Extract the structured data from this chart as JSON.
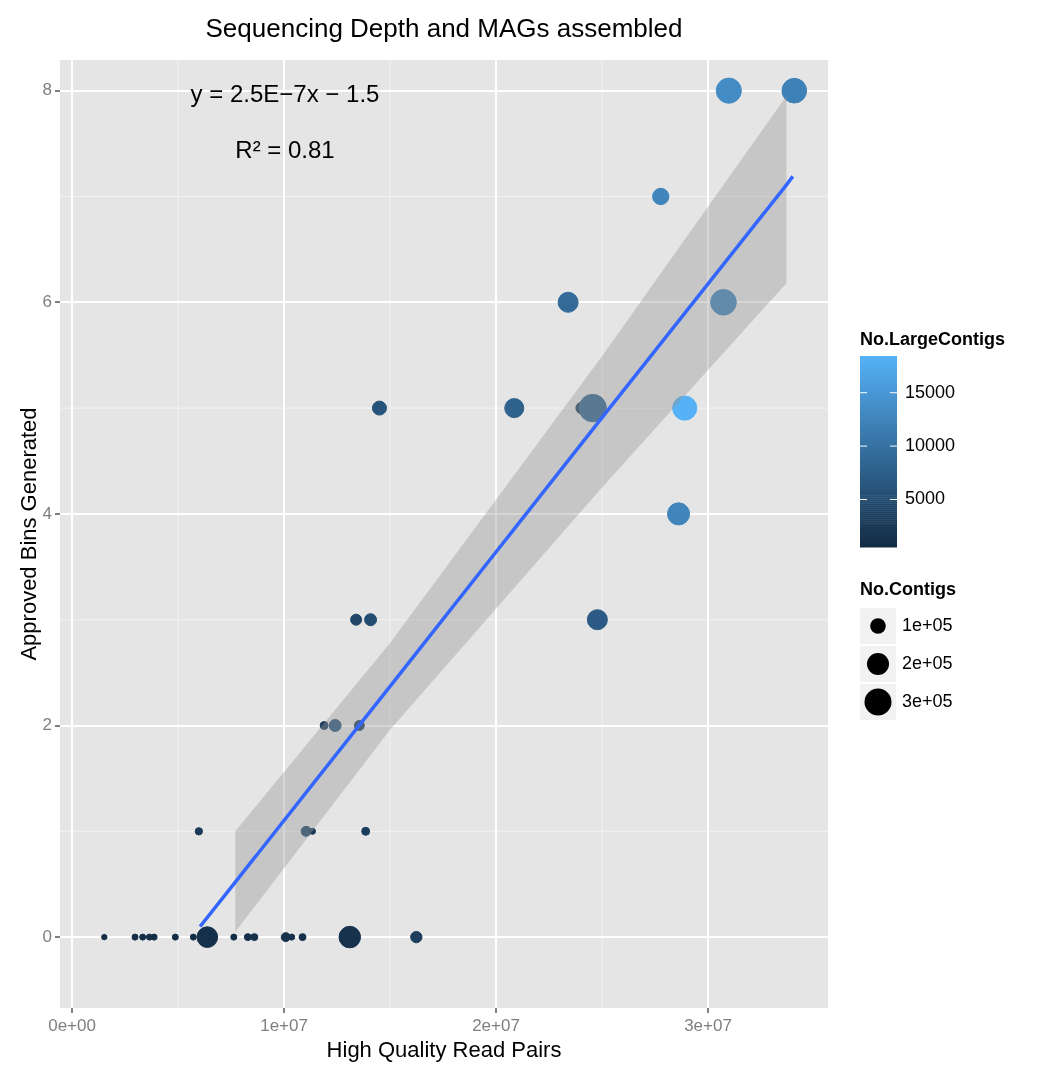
{
  "chart_data": {
    "type": "bubble",
    "title": "Sequencing Depth and MAGs assembled",
    "xlabel": "High Quality Read Pairs",
    "ylabel": "Approved Bins Generated",
    "clabel": "No.LargeContigs",
    "legend_title": "No.Contigs",
    "annotations": [
      "y = 2.5E−7x − 1.5",
      "R² = 0.81"
    ],
    "series": [
      {
        "x": [
          1520000,
          2970000,
          3330000,
          3650000,
          3870000,
          4870000,
          5720000,
          6380000,
          7630000,
          8290000,
          8600000,
          10080000,
          10360000,
          10870000,
          13100000,
          16240000,
          5980000,
          11040000,
          11340000,
          13850000,
          11890000,
          12410000,
          13550000,
          13400000,
          14080000,
          24780000,
          28610000,
          14500000,
          20860000,
          24050000,
          24560000,
          28900000,
          23400000,
          30730000,
          27770000,
          30980000,
          34070000
        ],
        "values": [
          0,
          0,
          0,
          0,
          0,
          0,
          0,
          0,
          0,
          0,
          0,
          0,
          0,
          0,
          0,
          0,
          1,
          1,
          1,
          1,
          2,
          2,
          2,
          3,
          3,
          3,
          4,
          5,
          5,
          5,
          5,
          5,
          6,
          6,
          7,
          8,
          8
        ],
        "sizes": [
          12000,
          15000,
          15000,
          15000,
          15000,
          15000,
          15000,
          175000,
          15000,
          20000,
          20000,
          33000,
          15000,
          20000,
          190000,
          53000,
          22000,
          41000,
          15000,
          26000,
          26000,
          59000,
          41000,
          50000,
          59000,
          165000,
          200000,
          81000,
          150000,
          59000,
          310000,
          240000,
          165000,
          270000,
          110000,
          260000,
          250000
        ],
        "cvalues": [
          800,
          900,
          900,
          900,
          900,
          1000,
          900,
          1200,
          1000,
          1200,
          1200,
          1500,
          1300,
          1200,
          1500,
          3000,
          2500,
          4000,
          2500,
          3000,
          3000,
          6000,
          3000,
          4000,
          5000,
          7000,
          12500,
          6000,
          8000,
          3000,
          8000,
          18400,
          9000,
          12000,
          12500,
          13500,
          12000
        ],
        "colors": [
          "#142d46",
          "#142e47",
          "#142e47",
          "#142e47",
          "#142e47",
          "#152e48",
          "#142e47",
          "#15304a",
          "#152e48",
          "#15304a",
          "#15304a",
          "#17324d",
          "#16314b",
          "#15304a",
          "#17324d",
          "#1c3d5c",
          "#1a3a57",
          "#204566",
          "#1a3a57",
          "#1c3d5c",
          "#1c3d5c",
          "#27547a",
          "#1c3d5c",
          "#204566",
          "#244c70",
          "#2b5b84",
          "#4085bb",
          "#27547a",
          "#2f638e",
          "#1c3d5c",
          "#2f638e",
          "#56b1f7",
          "#336a98",
          "#3e81b6",
          "#4085bb",
          "#438cc5",
          "#3e81b6"
        ]
      },
      {
        "type": "line",
        "color": "#3366ff",
        "x": [
          6040000,
          7700000,
          15000000,
          25000000,
          33700000,
          34000000
        ],
        "values": [
          0.1,
          0.52,
          2.37,
          4.91,
          7.11,
          7.19
        ],
        "lower": [
          null,
          0.05,
          1.96,
          4.25,
          6.18,
          null
        ],
        "upper": [
          null,
          1.0,
          2.78,
          5.49,
          7.95,
          null
        ]
      }
    ],
    "xlim": [
      -570000,
      35660000
    ],
    "xticks": [
      {
        "value": 0,
        "label": "0e+00"
      },
      {
        "value": 10000000,
        "label": "1e+07"
      },
      {
        "value": 20000000,
        "label": "2e+07"
      },
      {
        "value": 30000000,
        "label": "3e+07"
      }
    ],
    "ylim": [
      -0.67,
      8.29
    ],
    "yticks": [
      0,
      2,
      4,
      6,
      8
    ],
    "clim": [
      550,
      18440
    ],
    "cticks": [
      5000,
      10000,
      15000
    ],
    "size_legend": [
      {
        "value": 100000,
        "label": "1e+05"
      },
      {
        "value": 200000,
        "label": "2e+05"
      },
      {
        "value": 300000,
        "label": "3e+05"
      }
    ],
    "grid": true
  }
}
